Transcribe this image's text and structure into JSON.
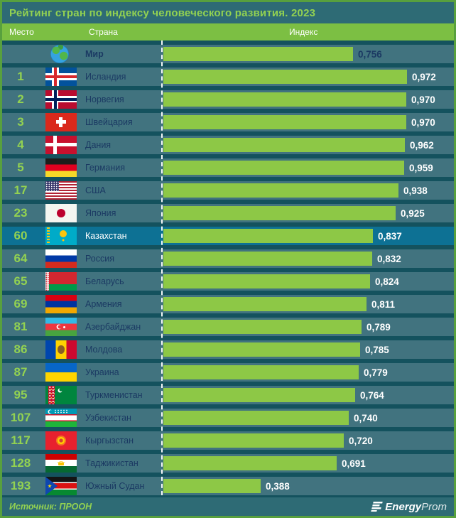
{
  "columns": {
    "place": "Место",
    "country": "Страна",
    "index": "Индекс"
  },
  "footer": {
    "source": "Источник: ПРООН",
    "logo_bold": "Energy",
    "logo_light": "Prom"
  },
  "colors": {
    "page_bg": "#14525e",
    "panel_bg": "#2e6b75",
    "row_bg": "#41737f",
    "row_highlight": "#0d7194",
    "bar_green": "#8dc846",
    "header_green": "#7cbf43",
    "accent_green": "#93d251",
    "text_navy": "#1b3a63",
    "border_green": "#58a03e"
  },
  "chart_data": {
    "type": "bar",
    "orientation": "horizontal",
    "title": "Рейтинг стран по индексу человеческого развития. 2023",
    "value_axis_label": "Индекс",
    "xlim": [
      0,
      1
    ],
    "highlight_country": "Казахстан",
    "rows": [
      {
        "rank": "",
        "country": "Мир",
        "flag": "world",
        "value": 0.756,
        "label": "0,756",
        "world": true
      },
      {
        "rank": "1",
        "country": "Исландия",
        "flag": "iceland",
        "value": 0.972,
        "label": "0,972"
      },
      {
        "rank": "2",
        "country": "Норвегия",
        "flag": "norway",
        "value": 0.97,
        "label": "0,970"
      },
      {
        "rank": "3",
        "country": "Швейцария",
        "flag": "switzerland",
        "value": 0.97,
        "label": "0,970"
      },
      {
        "rank": "4",
        "country": "Дания",
        "flag": "denmark",
        "value": 0.962,
        "label": "0,962"
      },
      {
        "rank": "5",
        "country": "Германия",
        "flag": "germany",
        "value": 0.959,
        "label": "0,959"
      },
      {
        "rank": "17",
        "country": "США",
        "flag": "usa",
        "value": 0.938,
        "label": "0,938"
      },
      {
        "rank": "23",
        "country": "Япония",
        "flag": "japan",
        "value": 0.925,
        "label": "0,925"
      },
      {
        "rank": "60",
        "country": "Казахстан",
        "flag": "kazakhstan",
        "value": 0.837,
        "label": "0,837",
        "highlight": true
      },
      {
        "rank": "64",
        "country": "Россия",
        "flag": "russia",
        "value": 0.832,
        "label": "0,832"
      },
      {
        "rank": "65",
        "country": "Беларусь",
        "flag": "belarus",
        "value": 0.824,
        "label": "0,824"
      },
      {
        "rank": "69",
        "country": "Армения",
        "flag": "armenia",
        "value": 0.811,
        "label": "0,811"
      },
      {
        "rank": "81",
        "country": "Азербайджан",
        "flag": "azerbaijan",
        "value": 0.789,
        "label": "0,789"
      },
      {
        "rank": "86",
        "country": "Молдова",
        "flag": "moldova",
        "value": 0.785,
        "label": "0,785"
      },
      {
        "rank": "87",
        "country": "Украина",
        "flag": "ukraine",
        "value": 0.779,
        "label": "0,779"
      },
      {
        "rank": "95",
        "country": "Туркменистан",
        "flag": "turkmenistan",
        "value": 0.764,
        "label": "0,764"
      },
      {
        "rank": "107",
        "country": "Узбекистан",
        "flag": "uzbekistan",
        "value": 0.74,
        "label": "0,740"
      },
      {
        "rank": "117",
        "country": "Кыргызстан",
        "flag": "kyrgyzstan",
        "value": 0.72,
        "label": "0,720"
      },
      {
        "rank": "128",
        "country": "Таджикистан",
        "flag": "tajikistan",
        "value": 0.691,
        "label": "0,691"
      },
      {
        "rank": "193",
        "country": "Южный Судан",
        "flag": "south-sudan",
        "value": 0.388,
        "label": "0,388"
      }
    ]
  }
}
